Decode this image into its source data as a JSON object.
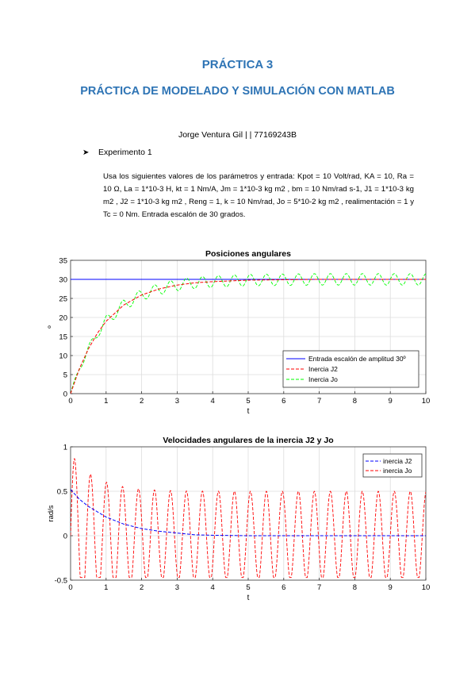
{
  "document": {
    "title1": "PRÁCTICA 3",
    "title2": "PRÁCTICA DE MODELADO Y SIMULACIÓN CON MATLAB",
    "author": "Jorge Ventura Gil | | 77169243B",
    "bullet_label": "Experimento 1",
    "paragraph": "Usa los siguientes valores de los parámetros y entrada: Kpot = 10 Volt/rad, KA = 10, Ra = 10 Ω, La = 1*10-3 H, kt = 1 Nm/A, Jm = 1*10-3 kg m2 , bm = 10 Nm/rad s-1, J1 = 1*10-3 kg m2 , J2 = 1*10-3 kg m2 , Reng = 1, k = 10 Nm/rad, Jo = 5*10-2 kg m2 , realimentación = 1 y Tc = 0 Nm. Entrada escalón de 30 grados."
  },
  "chart_data": [
    {
      "type": "line",
      "title": "Posiciones angulares",
      "xlabel": "t",
      "ylabel": "º",
      "xlim": [
        0,
        10
      ],
      "ylim": [
        0,
        35
      ],
      "xticks": [
        "0",
        "1",
        "2",
        "3",
        "4",
        "5",
        "6",
        "7",
        "8",
        "9",
        "10"
      ],
      "yticks": [
        "0",
        "5",
        "10",
        "15",
        "20",
        "25",
        "30",
        "35"
      ],
      "grid": true,
      "legend_position": "bottom-right",
      "series": [
        {
          "name": "Entrada escalón de amplitud 30º",
          "color": "#0000ff",
          "x": [
            0,
            10
          ],
          "y": [
            30,
            30
          ]
        },
        {
          "name": "Inercia J2",
          "color": "#ff0000",
          "style": "dashed",
          "x": [
            0,
            0.25,
            0.5,
            0.75,
            1,
            1.5,
            2,
            2.5,
            3,
            3.5,
            4,
            5,
            6,
            7,
            8,
            9,
            10
          ],
          "y": [
            0,
            6.6,
            11.7,
            15.8,
            19.0,
            23.3,
            25.9,
            27.5,
            28.5,
            29.1,
            29.4,
            29.8,
            29.9,
            30,
            30,
            30,
            30
          ]
        },
        {
          "name": "Inercia Jo",
          "color": "#00ff00",
          "style": "dashed",
          "trend_x": [
            0,
            0.25,
            0.5,
            0.75,
            1,
            1.5,
            2,
            2.5,
            3,
            3.5,
            4,
            5,
            6,
            7,
            8,
            9,
            10
          ],
          "trend_y": [
            0,
            6.6,
            11.7,
            15.8,
            19.0,
            23.3,
            25.9,
            27.5,
            28.5,
            29.1,
            29.4,
            29.8,
            29.9,
            30,
            30,
            30,
            30
          ],
          "oscillation_amplitude": [
            0.5,
            1.4,
            1.5,
            1.5
          ],
          "oscillation_period": 0.45
        }
      ]
    },
    {
      "type": "line",
      "title": "Velocidades angulares de la inercia J2 y Jo",
      "xlabel": "t",
      "ylabel": "rad/s",
      "xlim": [
        0,
        10
      ],
      "ylim": [
        -0.5,
        1
      ],
      "xticks": [
        "0",
        "1",
        "2",
        "3",
        "4",
        "5",
        "6",
        "7",
        "8",
        "9",
        "10"
      ],
      "yticks": [
        "-0.5",
        "0",
        "0.5",
        "1"
      ],
      "grid": true,
      "legend_position": "top-right",
      "series": [
        {
          "name": "inercia J2",
          "color": "#0000ff",
          "style": "dashed",
          "x": [
            0,
            0.25,
            0.5,
            1,
            1.5,
            2,
            2.5,
            3,
            3.5,
            4,
            5,
            6,
            7,
            8,
            9,
            10
          ],
          "y": [
            0.52,
            0.41,
            0.33,
            0.21,
            0.13,
            0.08,
            0.05,
            0.03,
            0.01,
            0.005,
            0,
            0,
            0,
            0,
            0,
            0
          ]
        },
        {
          "name": "inercia Jo",
          "color": "#ff0000",
          "style": "dashed",
          "start_value": 0,
          "peak_value": 0.93,
          "trough_value": -0.47,
          "steady_amplitude": 0.5,
          "oscillation_period": 0.45
        }
      ]
    }
  ]
}
